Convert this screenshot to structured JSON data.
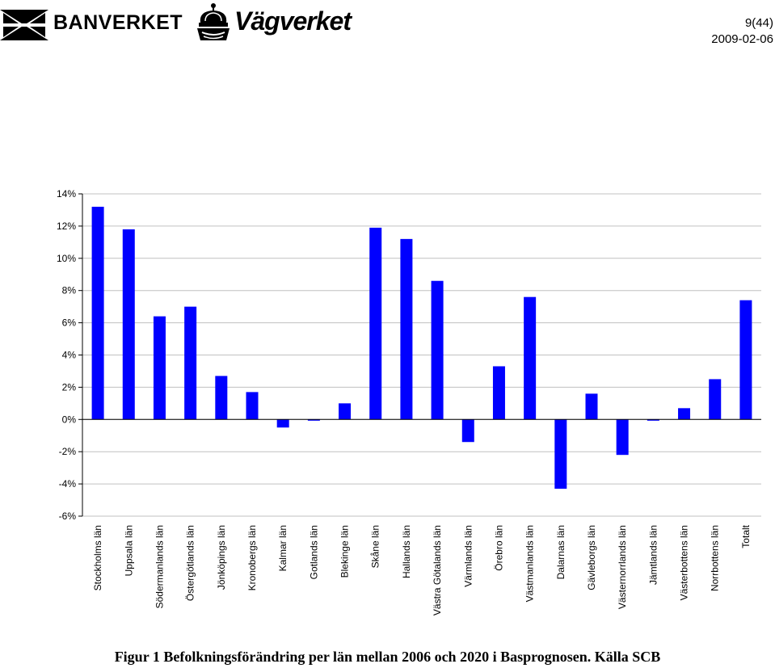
{
  "header": {
    "brand_left": "BANVERKET",
    "brand_right": "Vägverket",
    "page_number": "9(44)",
    "date": "2009-02-06"
  },
  "caption": "Figur 1 Befolkningsförändring per län mellan 2006 och 2020 i Basprognosen. Källa SCB",
  "colors": {
    "bar": "#0000ff",
    "grid": "#c0c0c0",
    "axis": "#000000"
  },
  "chart_data": {
    "type": "bar",
    "title": "",
    "xlabel": "",
    "ylabel": "",
    "ylim": [
      -6,
      14
    ],
    "yticks": [
      "14%",
      "12%",
      "10%",
      "8%",
      "6%",
      "4%",
      "2%",
      "0%",
      "-2%",
      "-4%",
      "-6%"
    ],
    "ytick_values": [
      14,
      12,
      10,
      8,
      6,
      4,
      2,
      0,
      -2,
      -4,
      -6
    ],
    "grid": true,
    "legend": "none",
    "categories": [
      "Stockholms län",
      "Uppsala län",
      "Södermanlands län",
      "Östergötlands län",
      "Jönköpings län",
      "Kronobergs län",
      "Kalmar län",
      "Gotlands län",
      "Blekinge län",
      "Skåne län",
      "Hallands län",
      "Västra Götalands län",
      "Värmlands län",
      "Örebro län",
      "Västmanlands län",
      "Dalarnas län",
      "Gävleborgs län",
      "Västernorrlands län",
      "Jämtlands län",
      "Västerbottens län",
      "Norrbottens län",
      "Totalt"
    ],
    "series": [
      {
        "name": "Befolkningsförändring",
        "values": [
          13.2,
          11.8,
          6.4,
          7.0,
          2.7,
          1.7,
          -0.5,
          0.0,
          1.0,
          11.9,
          11.2,
          8.6,
          -1.4,
          3.3,
          7.6,
          -4.3,
          1.6,
          -2.2,
          0.0,
          0.7,
          2.5,
          7.4
        ]
      }
    ]
  }
}
